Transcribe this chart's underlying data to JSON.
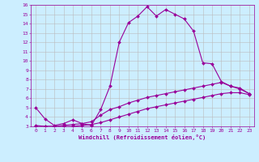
{
  "title": "",
  "xlabel": "Windchill (Refroidissement éolien,°C)",
  "background_color": "#cceeff",
  "line_color": "#990099",
  "grid_color": "#bbbbbb",
  "xlim": [
    -0.5,
    23.5
  ],
  "ylim": [
    3,
    16
  ],
  "xticks": [
    0,
    1,
    2,
    3,
    4,
    5,
    6,
    7,
    8,
    9,
    10,
    11,
    12,
    13,
    14,
    15,
    16,
    17,
    18,
    19,
    20,
    21,
    22,
    23
  ],
  "yticks": [
    3,
    4,
    5,
    6,
    7,
    8,
    9,
    10,
    11,
    12,
    13,
    14,
    15,
    16
  ],
  "curve1_x": [
    0,
    1,
    2,
    3,
    4,
    5,
    6,
    7,
    8,
    9,
    10,
    11,
    12,
    13,
    14,
    15,
    16,
    17,
    18,
    19,
    20,
    21,
    22,
    23
  ],
  "curve1_y": [
    5.0,
    3.8,
    3.1,
    3.3,
    3.7,
    3.3,
    3.1,
    4.8,
    7.3,
    12.0,
    14.1,
    14.8,
    15.8,
    14.8,
    15.5,
    15.0,
    14.5,
    13.2,
    9.8,
    9.7,
    7.8,
    7.3,
    7.0,
    6.5
  ],
  "curve2_x": [
    0,
    1,
    2,
    3,
    4,
    5,
    6,
    7,
    8,
    9,
    10,
    11,
    12,
    13,
    14,
    15,
    16,
    17,
    18,
    19,
    20,
    21,
    22,
    23
  ],
  "curve2_y": [
    3.1,
    3.0,
    3.0,
    3.1,
    3.2,
    3.3,
    3.5,
    4.2,
    4.8,
    5.1,
    5.5,
    5.8,
    6.1,
    6.3,
    6.5,
    6.7,
    6.9,
    7.1,
    7.3,
    7.5,
    7.7,
    7.3,
    7.1,
    6.5
  ],
  "curve3_x": [
    0,
    1,
    2,
    3,
    4,
    5,
    6,
    7,
    8,
    9,
    10,
    11,
    12,
    13,
    14,
    15,
    16,
    17,
    18,
    19,
    20,
    21,
    22,
    23
  ],
  "curve3_y": [
    3.0,
    3.0,
    3.0,
    3.0,
    3.0,
    3.1,
    3.2,
    3.4,
    3.7,
    4.0,
    4.3,
    4.6,
    4.9,
    5.1,
    5.3,
    5.5,
    5.7,
    5.9,
    6.1,
    6.3,
    6.5,
    6.6,
    6.6,
    6.4
  ]
}
